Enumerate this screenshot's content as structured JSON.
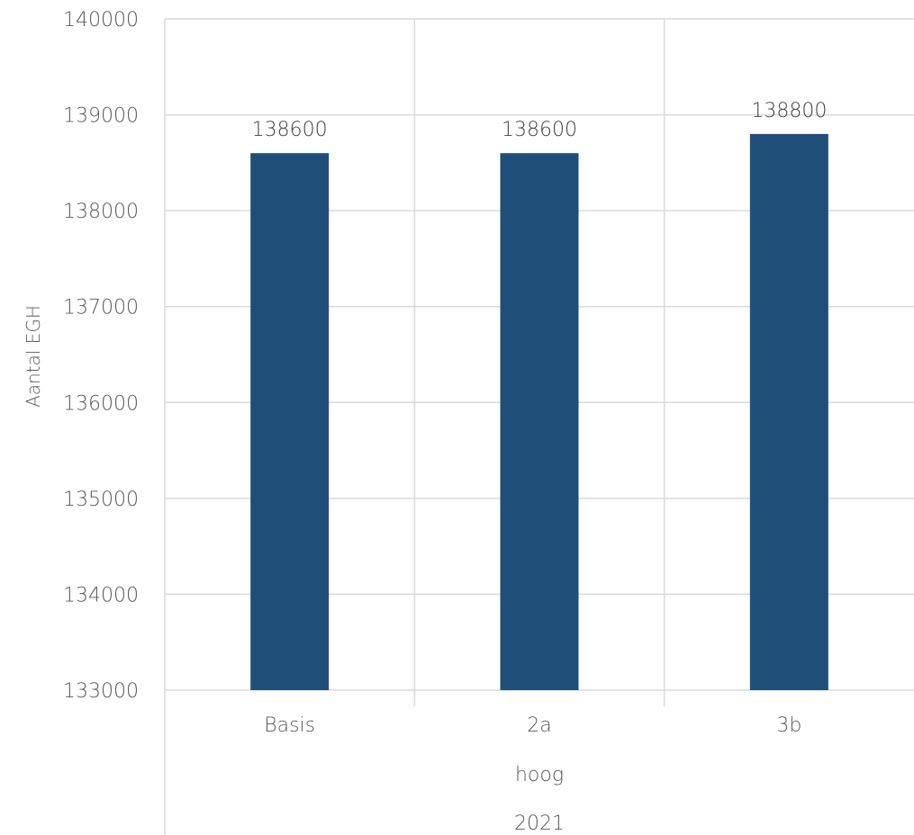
{
  "chart_data": {
    "type": "bar",
    "categories": [
      "Basis",
      "2a",
      "3b"
    ],
    "group_labels": [
      "hoog",
      "2021"
    ],
    "values": [
      138600,
      138600,
      138800
    ],
    "data_labels": [
      "138600",
      "138600",
      "138800"
    ],
    "title": "",
    "xlabel": "",
    "ylabel": "Aantal EGH",
    "ylim": [
      133000,
      140000
    ],
    "yticks": [
      133000,
      134000,
      135000,
      136000,
      137000,
      138000,
      139000,
      140000
    ],
    "ytick_labels": [
      "133000",
      "134000",
      "135000",
      "136000",
      "137000",
      "138000",
      "139000",
      "140000"
    ],
    "grid": true,
    "legend": "none",
    "bar_color": "#1f4e79"
  }
}
